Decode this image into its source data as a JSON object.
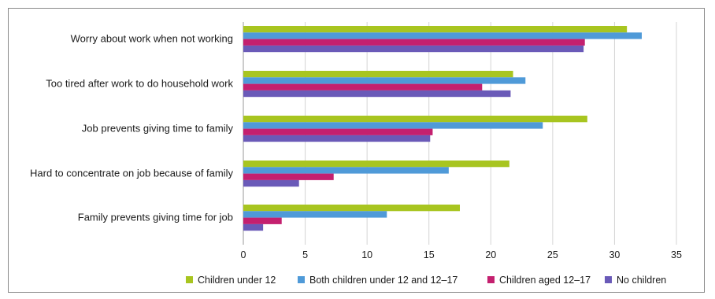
{
  "chart_data": {
    "type": "bar",
    "orientation": "horizontal",
    "categories": [
      "Worry about work when not working",
      "Too tired after work to do household work",
      "Job prevents giving time to family",
      "Hard to concentrate on job because of family",
      "Family prevents giving time for job"
    ],
    "series": [
      {
        "name": "Children under 12",
        "color": "#a8c520",
        "values": [
          31.0,
          21.8,
          27.8,
          21.5,
          17.5
        ]
      },
      {
        "name": "Both children under 12 and 12–17",
        "color": "#4f9ad8",
        "values": [
          32.2,
          22.8,
          24.2,
          16.6,
          11.6
        ]
      },
      {
        "name": "Children aged 12–17",
        "color": "#c4206f",
        "values": [
          27.6,
          19.3,
          15.3,
          7.3,
          3.1
        ]
      },
      {
        "name": "No children",
        "color": "#6a5ab8",
        "values": [
          27.5,
          21.6,
          15.1,
          4.5,
          1.6
        ]
      }
    ],
    "xlim": [
      0,
      35
    ],
    "xticks": [
      0,
      5,
      10,
      15,
      20,
      25,
      30,
      35
    ],
    "grid": "vertical",
    "legend_position": "bottom-right",
    "title": "",
    "xlabel": "",
    "ylabel": ""
  }
}
